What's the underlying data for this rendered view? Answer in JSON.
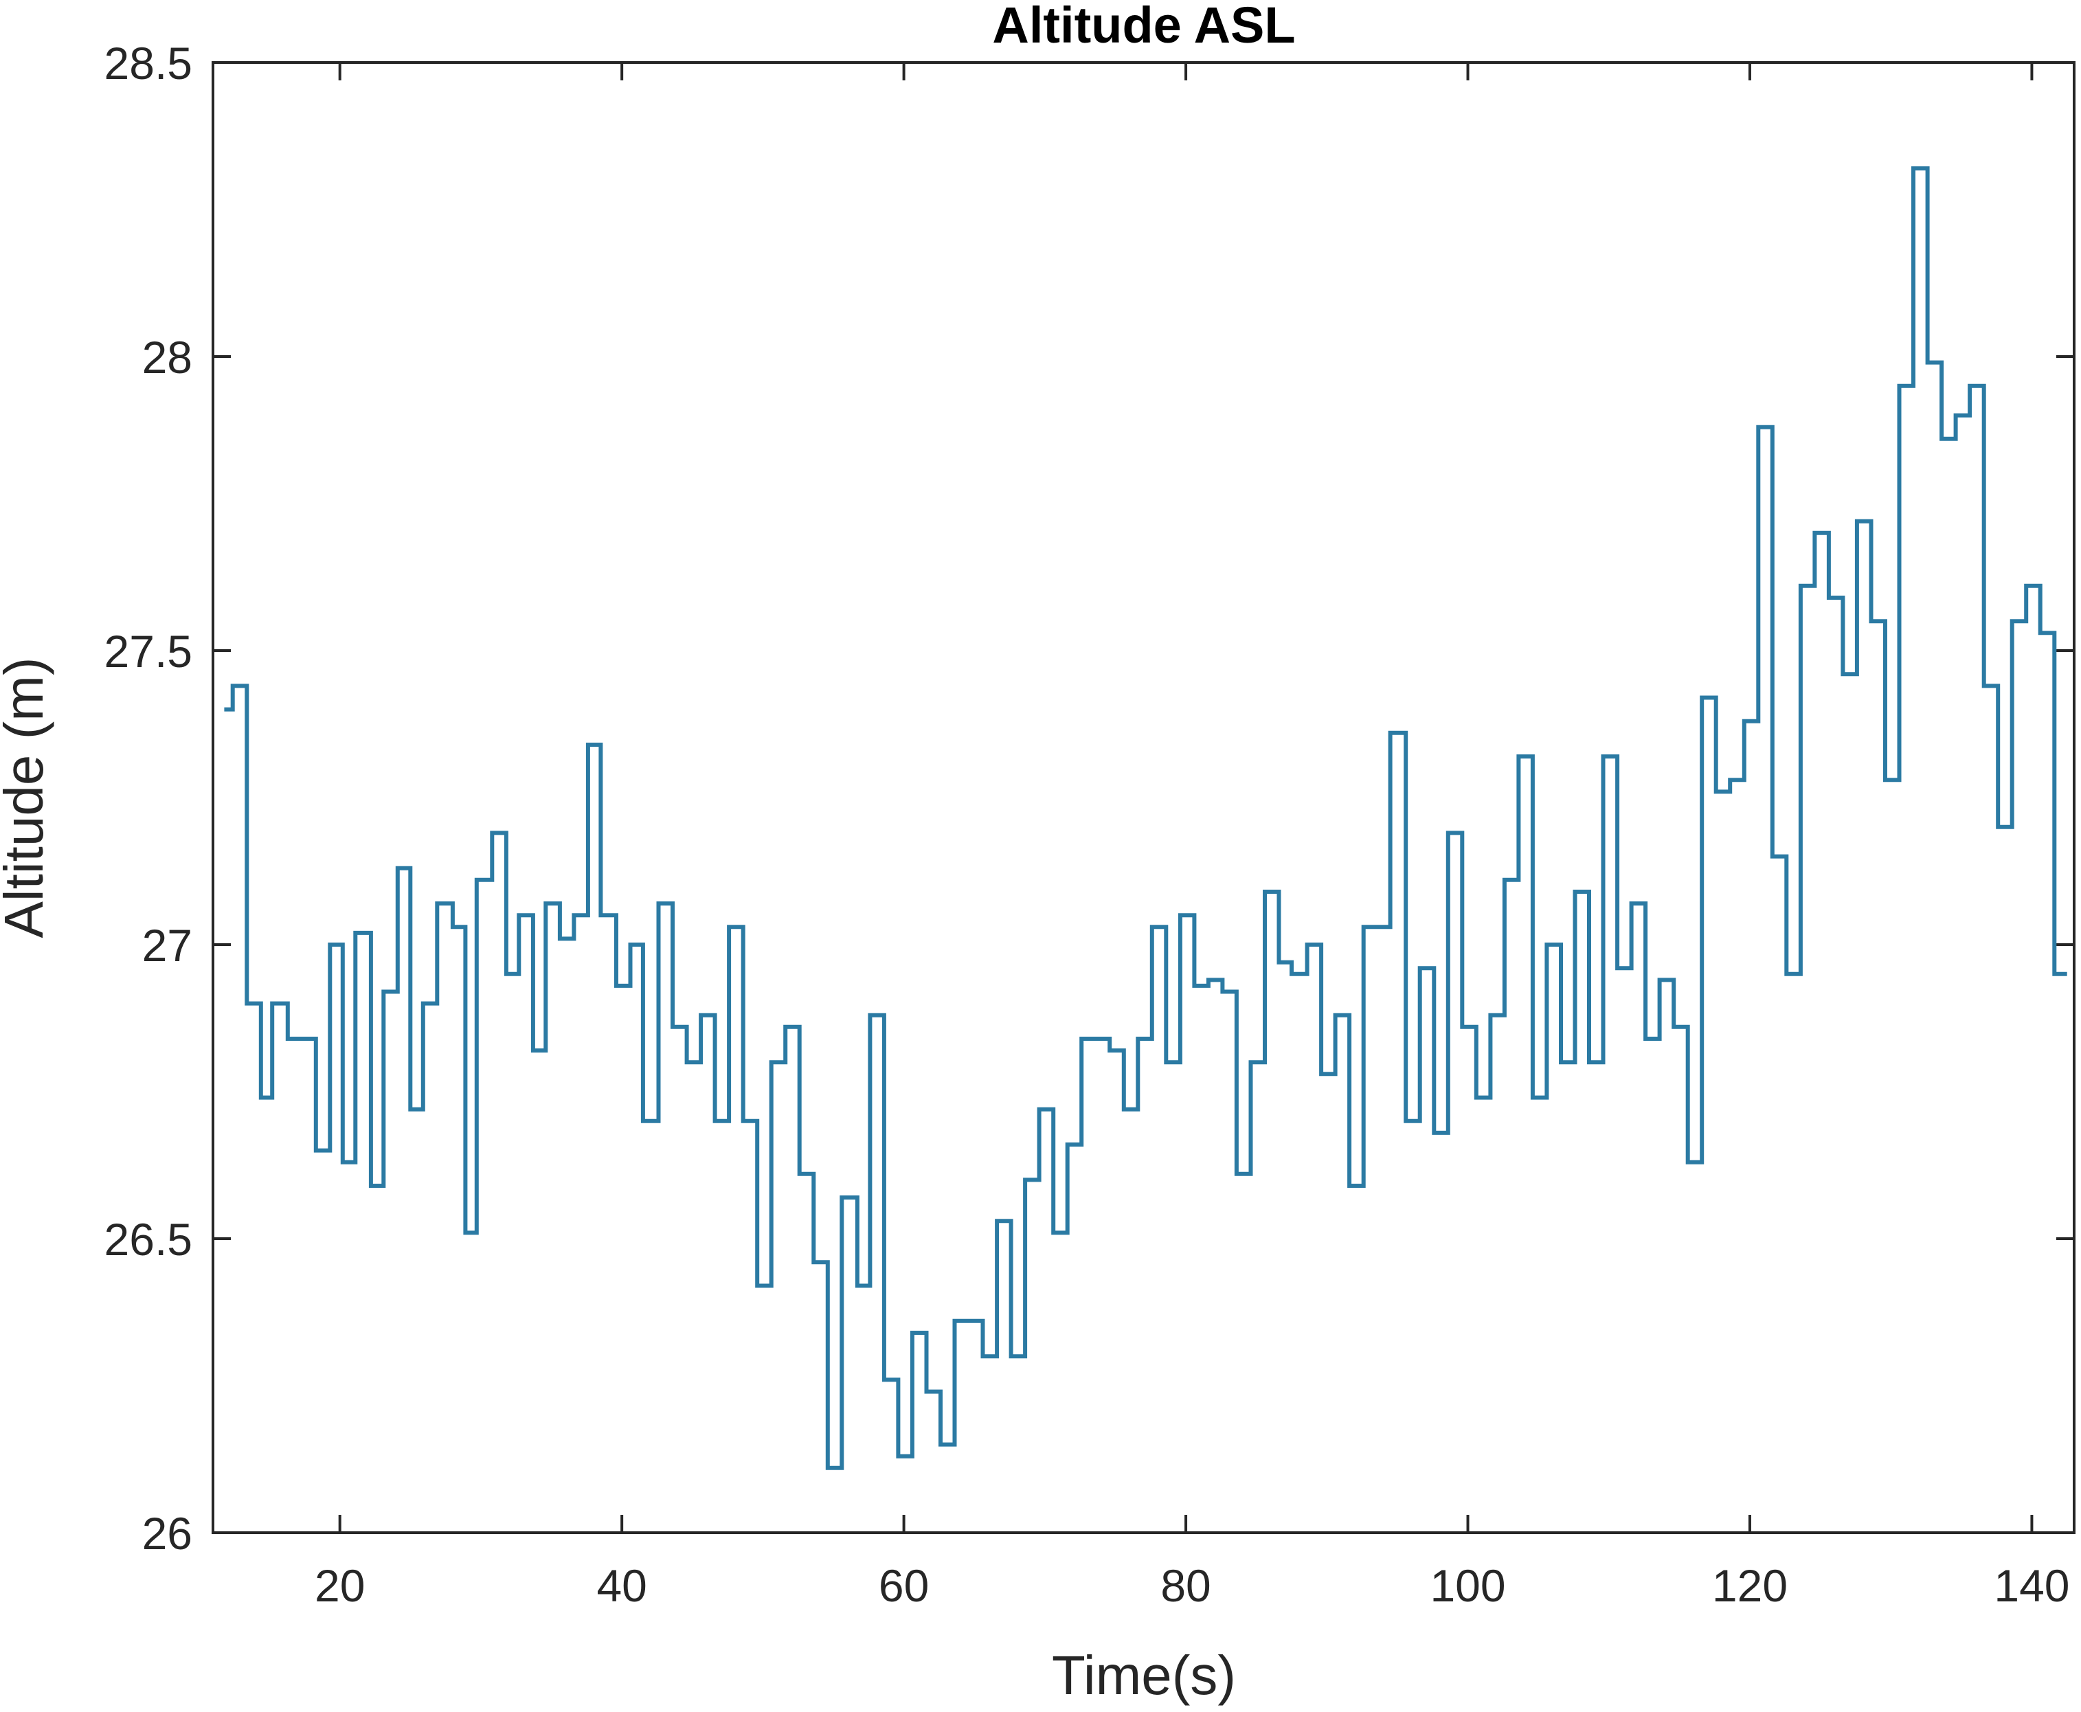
{
  "chart_data": {
    "type": "line",
    "title": "Altitude ASL",
    "xlabel": "Time(s)",
    "ylabel": "Altitude (m)",
    "xlim": [
      11,
      143
    ],
    "ylim": [
      26,
      28.5
    ],
    "xticks": [
      20,
      40,
      60,
      80,
      100,
      120,
      140
    ],
    "yticks": [
      26,
      26.5,
      27,
      27.5,
      28,
      28.5
    ],
    "xtick_labels": [
      "20",
      "40",
      "60",
      "80",
      "100",
      "120",
      "140"
    ],
    "ytick_labels": [
      "26",
      "26.5",
      "27",
      "27.5",
      "28",
      "28.5"
    ],
    "grid": false,
    "color": "#2b7aa3",
    "series": [
      {
        "step": "post",
        "x": [
          11.8,
          12.4,
          13.4,
          14.4,
          15.2,
          16.3,
          18.3,
          19.3,
          20.2,
          21.1,
          22.2,
          23.1,
          24.1,
          25.0,
          25.9,
          26.9,
          28.0,
          28.9,
          29.7,
          30.8,
          31.8,
          32.7,
          33.7,
          34.6,
          35.6,
          36.6,
          37.6,
          38.5,
          39.6,
          40.6,
          41.5,
          42.6,
          43.6,
          44.6,
          45.6,
          46.6,
          47.6,
          48.6,
          49.6,
          50.6,
          51.6,
          52.6,
          53.6,
          54.6,
          55.6,
          56.7,
          57.6,
          58.6,
          59.6,
          60.6,
          61.6,
          62.6,
          63.6,
          64.6,
          65.6,
          66.6,
          67.6,
          68.6,
          69.6,
          70.6,
          71.6,
          72.6,
          73.5,
          74.6,
          75.6,
          76.6,
          77.6,
          78.6,
          79.6,
          80.6,
          81.6,
          82.6,
          83.6,
          84.6,
          85.6,
          86.6,
          87.5,
          88.6,
          89.6,
          90.6,
          91.6,
          92.6,
          93.6,
          94.5,
          95.6,
          96.6,
          97.6,
          98.6,
          99.6,
          100.6,
          101.6,
          102.6,
          103.6,
          104.6,
          105.6,
          106.6,
          107.6,
          108.6,
          109.6,
          110.6,
          111.6,
          112.6,
          113.6,
          114.6,
          115.6,
          116.6,
          117.6,
          118.6,
          119.6,
          120.6,
          121.6,
          122.6,
          123.6,
          124.6,
          125.6,
          126.6,
          127.6,
          128.6,
          129.6,
          130.6,
          131.6,
          132.6,
          133.6,
          134.6,
          135.6,
          136.6,
          137.6,
          138.6,
          139.6,
          140.6,
          141.6,
          142.5
        ],
        "y": [
          27.4,
          27.44,
          26.9,
          26.74,
          26.9,
          26.84,
          26.65,
          27.0,
          26.63,
          27.02,
          26.59,
          26.92,
          27.13,
          26.72,
          26.9,
          27.07,
          27.03,
          26.51,
          27.11,
          27.19,
          26.95,
          27.05,
          26.82,
          27.07,
          27.01,
          27.05,
          27.34,
          27.05,
          26.93,
          27.0,
          26.7,
          27.07,
          26.86,
          26.8,
          26.88,
          26.7,
          27.03,
          26.7,
          26.42,
          26.8,
          26.86,
          26.61,
          26.46,
          26.11,
          26.57,
          26.42,
          26.88,
          26.26,
          26.13,
          26.34,
          26.24,
          26.15,
          26.36,
          26.36,
          26.3,
          26.53,
          26.3,
          26.6,
          26.72,
          26.51,
          26.66,
          26.84,
          26.84,
          26.82,
          26.72,
          26.84,
          27.03,
          26.8,
          27.05,
          26.93,
          26.94,
          26.92,
          26.61,
          26.8,
          27.09,
          26.97,
          26.95,
          27.0,
          26.78,
          26.88,
          26.59,
          27.03,
          27.03,
          27.36,
          26.7,
          26.96,
          26.68,
          27.19,
          26.86,
          26.74,
          26.88,
          27.11,
          27.32,
          26.74,
          27.0,
          26.8,
          27.09,
          26.8,
          27.32,
          26.96,
          27.07,
          26.84,
          26.94,
          26.86,
          26.63,
          27.42,
          27.26,
          27.28,
          27.38,
          27.88,
          27.15,
          26.95,
          27.61,
          27.7,
          27.59,
          27.46,
          27.72,
          27.55,
          27.28,
          27.95,
          28.32,
          27.99,
          27.86,
          27.9,
          27.95,
          27.44,
          27.2,
          27.55,
          27.61,
          27.53,
          26.95,
          26.95
        ]
      }
    ]
  }
}
